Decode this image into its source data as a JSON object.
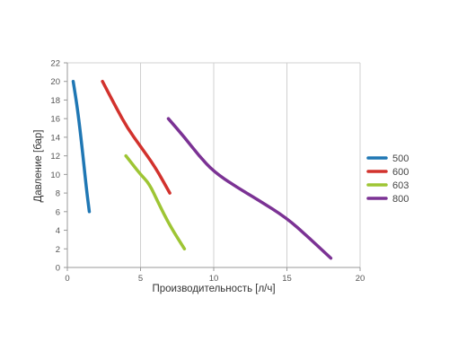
{
  "chart_data": {
    "type": "line",
    "xlabel": "Производительность [л/ч]",
    "ylabel": "Давление [бар]",
    "xlim": [
      0,
      20
    ],
    "ylim": [
      0,
      22
    ],
    "x_ticks": [
      0,
      5,
      10,
      15,
      20
    ],
    "y_ticks": [
      0,
      2,
      4,
      6,
      8,
      10,
      12,
      14,
      16,
      18,
      20,
      22
    ],
    "grid": {
      "vertical": true,
      "horizontal": false
    },
    "legend_position": "right",
    "series": [
      {
        "name": "500",
        "color": "#1f77b4",
        "points": [
          [
            0.4,
            20
          ],
          [
            0.7,
            17
          ],
          [
            1.0,
            13
          ],
          [
            1.3,
            8.5
          ],
          [
            1.5,
            6
          ]
        ]
      },
      {
        "name": "600",
        "color": "#d2322d",
        "points": [
          [
            2.4,
            20
          ],
          [
            3.4,
            17
          ],
          [
            4.1,
            15
          ],
          [
            5.0,
            13
          ],
          [
            6.0,
            10.8
          ],
          [
            7.0,
            8
          ]
        ]
      },
      {
        "name": "603",
        "color": "#9ec534",
        "points": [
          [
            4.0,
            12
          ],
          [
            4.5,
            11
          ],
          [
            5.0,
            10
          ],
          [
            5.6,
            9
          ],
          [
            6.2,
            7
          ],
          [
            7.0,
            4.5
          ],
          [
            8.0,
            2
          ]
        ]
      },
      {
        "name": "800",
        "color": "#7b3294",
        "points": [
          [
            6.9,
            16
          ],
          [
            8.0,
            14
          ],
          [
            9.0,
            12
          ],
          [
            10.0,
            10.3
          ],
          [
            11.5,
            8.7
          ],
          [
            13.0,
            7.3
          ],
          [
            15.0,
            5.3
          ],
          [
            16.5,
            3.2
          ],
          [
            18.0,
            1
          ]
        ]
      }
    ]
  }
}
